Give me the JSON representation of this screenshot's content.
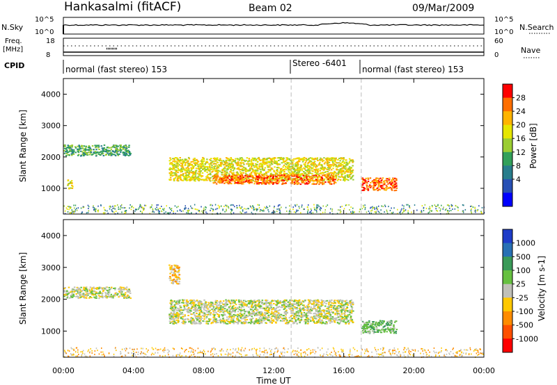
{
  "header": {
    "station": "Hankasalmi (fitACF)",
    "beam": "Beam 02",
    "date": "09/Mar/2009"
  },
  "noise_panel": {
    "left_label": "N.Sky",
    "right_label": "N.Search",
    "left_ticks": [
      "10^5",
      "10^0"
    ],
    "right_ticks": [
      "10^5",
      "10^0"
    ]
  },
  "freq_panel": {
    "left_label_line1": "Freq.",
    "left_label_line2": "[MHz]",
    "left_ticks": [
      "18",
      "8"
    ],
    "right_label": "Nave",
    "right_ticks": [
      "60",
      "0"
    ]
  },
  "cpid": {
    "label": "CPID",
    "segments": [
      {
        "text": "normal (fast stereo) 153",
        "start_hour": 0
      },
      {
        "text": "Stereo -6401",
        "start_hour": 13
      },
      {
        "text": "normal (fast stereo) 153",
        "start_hour": 17
      }
    ]
  },
  "time_axis": {
    "label": "Time UT",
    "ticks": [
      "00:00",
      "04:00",
      "08:00",
      "12:00",
      "16:00",
      "20:00",
      "00:00"
    ]
  },
  "chart_data": [
    {
      "type": "heatmap",
      "name": "power",
      "ylabel": "Slant Range [km]",
      "yticks": [
        1000,
        2000,
        3000,
        4000
      ],
      "ylim": [
        180,
        4500
      ],
      "xlim_hours": [
        0,
        24
      ],
      "colorbar_label": "Power [dB]",
      "colorbar_ticks": [
        "28",
        "24",
        "20",
        "16",
        "12",
        "8",
        "4"
      ],
      "colorbar_colors": [
        "#ff0000",
        "#ff6e00",
        "#ffb400",
        "#e6e600",
        "#9bcd32",
        "#32a05a",
        "#287d8c",
        "#2850b4",
        "#0000ff"
      ],
      "features": [
        {
          "t0": 0.0,
          "t1": 3.8,
          "r0": 2050,
          "r1": 2400,
          "level": 5
        },
        {
          "t0": 0.2,
          "t1": 0.5,
          "r0": 1000,
          "r1": 1300,
          "level": 3
        },
        {
          "t0": 6.0,
          "t1": 16.5,
          "r0": 1250,
          "r1": 2000,
          "level": 3
        },
        {
          "t0": 8.5,
          "t1": 15.5,
          "r0": 1150,
          "r1": 1450,
          "level": 1
        },
        {
          "t0": 17.0,
          "t1": 19.0,
          "r0": 950,
          "r1": 1350,
          "level": 1
        }
      ],
      "time_markers_hours": [
        13,
        17
      ]
    },
    {
      "type": "heatmap",
      "name": "velocity",
      "ylabel": "Slant Range [km]",
      "yticks": [
        1000,
        2000,
        3000,
        4000
      ],
      "ylim": [
        180,
        4500
      ],
      "xlim_hours": [
        0,
        24
      ],
      "colorbar_label": "Velocity [m s-1]",
      "colorbar_ticks": [
        "1000",
        "500",
        "100",
        "25",
        "-25",
        "-100",
        "-500",
        "-1000"
      ],
      "colorbar_colors": [
        "#1e3cc8",
        "#2870b4",
        "#3a9a58",
        "#66c040",
        "#c0c0b8",
        "#ffc800",
        "#ff8c00",
        "#ff5000",
        "#ff0000"
      ],
      "features": [
        {
          "t0": 0.0,
          "t1": 3.8,
          "r0": 2050,
          "r1": 2400,
          "level": 4
        },
        {
          "t0": 6.0,
          "t1": 16.5,
          "r0": 1250,
          "r1": 2000,
          "level": 4
        },
        {
          "t0": 6.0,
          "t1": 6.6,
          "r0": 2500,
          "r1": 3100,
          "level": 5
        },
        {
          "t0": 17.0,
          "t1": 19.0,
          "r0": 950,
          "r1": 1350,
          "level": 3
        }
      ],
      "time_markers_hours": [
        13,
        17
      ]
    }
  ]
}
